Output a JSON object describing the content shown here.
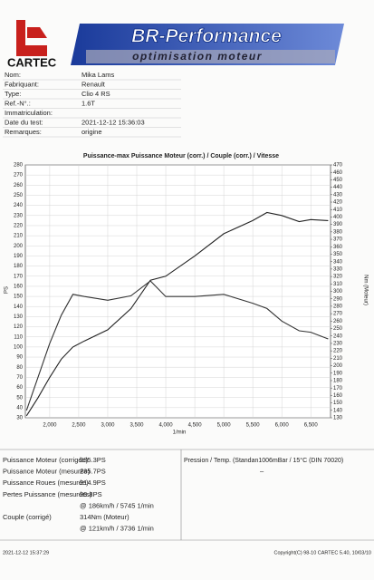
{
  "header": {
    "brand": "CARTEC",
    "banner_title": "BR-Performance",
    "banner_subtitle": "optimisation moteur"
  },
  "fields": [
    {
      "label": "Nom:",
      "value": "Mika Lams"
    },
    {
      "label": "Fabriquant:",
      "value": "Renault"
    },
    {
      "label": "Type:",
      "value": "Clio 4 RS"
    },
    {
      "label": "Ref.-N°.:",
      "value": "1.6T"
    },
    {
      "label": "Immatriculation:"
    },
    {
      "label": "Date du test:",
      "value": "2021-12-12 15:36:03"
    },
    {
      "label": "Remarques:",
      "value": "origine"
    }
  ],
  "chart": {
    "type": "line",
    "title": "Puissance-max Puissance Moteur (corr.) / Couple (corr.) / Vitesse",
    "ylabel": "PS",
    "y2label": "Nm (Moteur)",
    "xlabel": "1/min",
    "x": [
      1600,
      1800,
      2000,
      2200,
      2400,
      2600,
      3000,
      3400,
      3736,
      4000,
      4500,
      5000,
      5500,
      5745,
      6000,
      6300,
      6500,
      6800
    ],
    "series": [
      {
        "name": "Puissance Moteur (corr.)",
        "color": "#222",
        "values": [
          32,
          50,
          70,
          88,
          100,
          106,
          117,
          138,
          166,
          170,
          190,
          212,
          225,
          233,
          230,
          224,
          226,
          225
        ]
      },
      {
        "name": "Couple (corr.)",
        "color": "#333",
        "axis": "y2",
        "values": [
          140,
          185,
          230,
          268,
          296,
          293,
          288,
          294,
          314,
          293,
          293,
          296,
          284,
          277,
          260,
          247,
          245,
          236
        ]
      }
    ],
    "xlim": [
      1580,
      6840
    ],
    "xticks": [
      {
        "value": 2000,
        "label": "2,000"
      },
      {
        "value": 2500,
        "label": "2,500"
      },
      {
        "value": 3000,
        "label": "3,000"
      },
      {
        "value": 3500,
        "label": "3,500"
      },
      {
        "value": 4000,
        "label": "4,000"
      },
      {
        "value": 4500,
        "label": "4,500"
      },
      {
        "value": 5000,
        "label": "5,000"
      },
      {
        "value": 5500,
        "label": "5,500"
      },
      {
        "value": 6000,
        "label": "6,000"
      },
      {
        "value": 6500,
        "label": "6,500"
      }
    ],
    "ylim": [
      30,
      280
    ],
    "yticks": [
      30,
      40,
      50,
      60,
      70,
      80,
      90,
      100,
      110,
      120,
      130,
      140,
      150,
      160,
      170,
      180,
      190,
      200,
      210,
      220,
      230,
      240,
      250,
      260,
      270,
      280
    ],
    "y2lim": [
      130,
      470
    ],
    "y2ticks": [
      130,
      140,
      150,
      160,
      170,
      180,
      190,
      200,
      210,
      220,
      230,
      240,
      250,
      260,
      270,
      280,
      290,
      300,
      310,
      320,
      330,
      340,
      350,
      360,
      370,
      380,
      390,
      400,
      410,
      420,
      430,
      440,
      450,
      460,
      470
    ],
    "grid": true
  },
  "results": [
    {
      "label": "Puissance Moteur (corrigée)",
      "value": "235.3PS"
    },
    {
      "label": "Puissance Moteur (mesurée)",
      "value": "235.7PS"
    },
    {
      "label": "Puissance Roues (mesurée)",
      "value": "214.9PS"
    },
    {
      "label": "Pertes Puissance (mesurées)",
      "value": "20.8PS"
    },
    {
      "value": "@ 186km/h / 5745 1/min"
    },
    {
      "label": "Couple (corrigé)",
      "value": "314Nm (Moteur)"
    },
    {
      "value": "@ 121km/h / 3736 1/min"
    }
  ],
  "conditions": {
    "label": "Pression / Temp. (Standan1006mBar / 15°C (DIN 70020)",
    "value": "–"
  },
  "footer": {
    "timestamp": "2021-12-12 15:37:29",
    "copyright": "Copyright(C) 98-10 CARTEC 5.40, 10/03/10"
  }
}
